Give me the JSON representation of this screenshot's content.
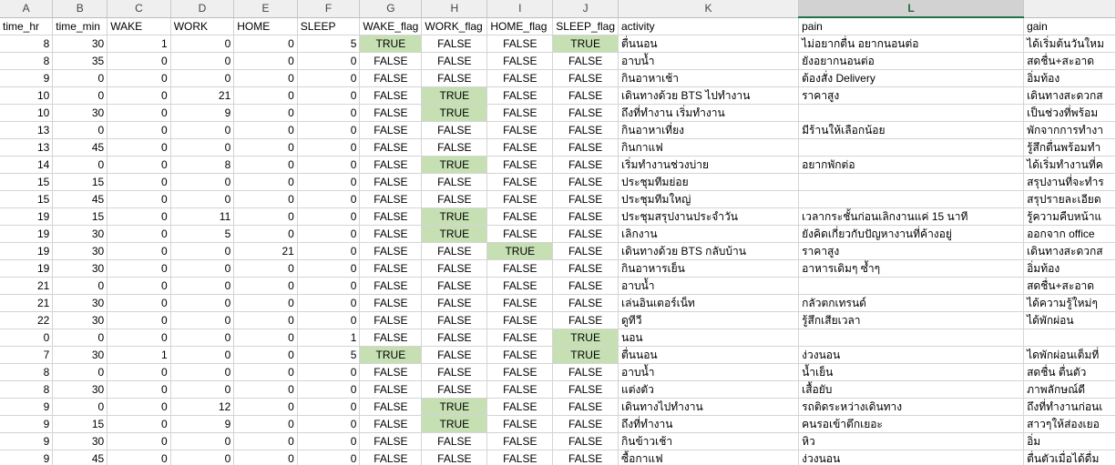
{
  "spreadsheet": {
    "column_letters": [
      "A",
      "B",
      "C",
      "D",
      "E",
      "F",
      "G",
      "H",
      "I",
      "J",
      "K",
      "L",
      ""
    ],
    "selected_column": "L",
    "highlight_color": "#c6e0b4",
    "header_row": [
      "time_hr",
      "time_min",
      "WAKE",
      "WORK",
      "HOME",
      "SLEEP",
      "WAKE_flag",
      "WORK_flag",
      "HOME_flag",
      "SLEEP_flag",
      "activity",
      "pain",
      "gain"
    ],
    "rows": [
      [
        "8",
        "30",
        "1",
        "0",
        "0",
        "5",
        "TRUE",
        "FALSE",
        "FALSE",
        "TRUE",
        "ตื่นนอน",
        "ไม่อยากตื่น อยากนอนต่อ",
        "ได้เริ่มต้นวันใหม"
      ],
      [
        "8",
        "35",
        "0",
        "0",
        "0",
        "0",
        "FALSE",
        "FALSE",
        "FALSE",
        "FALSE",
        "อาบน้ำ",
        "ยังอยากนอนต่อ",
        "สดชื่น+สะอาด"
      ],
      [
        "9",
        "0",
        "0",
        "0",
        "0",
        "0",
        "FALSE",
        "FALSE",
        "FALSE",
        "FALSE",
        "กินอาหาเช้า",
        "ต้องสั่ง Delivery",
        "อิ่มท้อง"
      ],
      [
        "10",
        "0",
        "0",
        "21",
        "0",
        "0",
        "FALSE",
        "TRUE",
        "FALSE",
        "FALSE",
        "เดินทางด้วย BTS ไปทำงาน",
        "ราคาสูง",
        "เดินทางสะดวกส"
      ],
      [
        "10",
        "30",
        "0",
        "9",
        "0",
        "0",
        "FALSE",
        "TRUE",
        "FALSE",
        "FALSE",
        "ถึงที่ทำงาน เริ่มทำงาน",
        "",
        "เป็นช่วงที่พร้อม"
      ],
      [
        "13",
        "0",
        "0",
        "0",
        "0",
        "0",
        "FALSE",
        "FALSE",
        "FALSE",
        "FALSE",
        "กินอาหาเที่ยง",
        "มีร้านให้เลือกน้อย",
        "พักจากการทำงา"
      ],
      [
        "13",
        "45",
        "0",
        "0",
        "0",
        "0",
        "FALSE",
        "FALSE",
        "FALSE",
        "FALSE",
        "กินกาแฟ",
        "",
        "รู้สึกตื่นพร้อมทำ"
      ],
      [
        "14",
        "0",
        "0",
        "8",
        "0",
        "0",
        "FALSE",
        "TRUE",
        "FALSE",
        "FALSE",
        "เริ่มทำงานช่วงบ่าย",
        "อยากพักต่อ",
        "ได้เริ่มทำงานที่ค"
      ],
      [
        "15",
        "15",
        "0",
        "0",
        "0",
        "0",
        "FALSE",
        "FALSE",
        "FALSE",
        "FALSE",
        "ประชุมทีมย่อย",
        "",
        "สรุปงานที่จะทำร"
      ],
      [
        "15",
        "45",
        "0",
        "0",
        "0",
        "0",
        "FALSE",
        "FALSE",
        "FALSE",
        "FALSE",
        "ประชุมทีมใหญ่",
        "",
        "สรุปรายละเอียด"
      ],
      [
        "19",
        "15",
        "0",
        "11",
        "0",
        "0",
        "FALSE",
        "TRUE",
        "FALSE",
        "FALSE",
        "ประชุมสรุปงานประจำวัน",
        "เวลากระชั้นก่อนเลิกงานแค่ 15 นาที",
        "รู้ความคืบหน้าแ"
      ],
      [
        "19",
        "30",
        "0",
        "5",
        "0",
        "0",
        "FALSE",
        "TRUE",
        "FALSE",
        "FALSE",
        "เลิกงาน",
        "ยังคิดเกี่ยวกับปัญหางานที่ค้างอยู่",
        "ออกจาก office"
      ],
      [
        "19",
        "30",
        "0",
        "0",
        "21",
        "0",
        "FALSE",
        "FALSE",
        "TRUE",
        "FALSE",
        "เดินทางด้วย BTS กลับบ้าน",
        "ราคาสูง",
        "เดินทางสะดวกส"
      ],
      [
        "19",
        "30",
        "0",
        "0",
        "0",
        "0",
        "FALSE",
        "FALSE",
        "FALSE",
        "FALSE",
        "กินอาหารเย็น",
        "อาหารเดิมๆ ซ้ำๆ",
        "อิ่มท้อง"
      ],
      [
        "21",
        "0",
        "0",
        "0",
        "0",
        "0",
        "FALSE",
        "FALSE",
        "FALSE",
        "FALSE",
        "อาบน้ำ",
        "",
        "สดชื่น+สะอาด"
      ],
      [
        "21",
        "30",
        "0",
        "0",
        "0",
        "0",
        "FALSE",
        "FALSE",
        "FALSE",
        "FALSE",
        "เล่นอินเตอร์เน็ท",
        "กลัวตกเทรนด์",
        "ได้ความรู้ใหม่ๆ"
      ],
      [
        "22",
        "30",
        "0",
        "0",
        "0",
        "0",
        "FALSE",
        "FALSE",
        "FALSE",
        "FALSE",
        "ดูทีวี",
        "รู้สึกเสียเวลา",
        "ได้พักผ่อน"
      ],
      [
        "0",
        "0",
        "0",
        "0",
        "0",
        "1",
        "FALSE",
        "FALSE",
        "FALSE",
        "TRUE",
        "นอน",
        "",
        ""
      ],
      [
        "7",
        "30",
        "1",
        "0",
        "0",
        "5",
        "TRUE",
        "FALSE",
        "FALSE",
        "TRUE",
        "ตื่นนอน",
        "ง่วงนอน",
        "ไดพักผ่อนเต็มที่"
      ],
      [
        "8",
        "0",
        "0",
        "0",
        "0",
        "0",
        "FALSE",
        "FALSE",
        "FALSE",
        "FALSE",
        "อาบน้ำ",
        "น้ำเย็น",
        "สดชื่น ตื่นตัว"
      ],
      [
        "8",
        "30",
        "0",
        "0",
        "0",
        "0",
        "FALSE",
        "FALSE",
        "FALSE",
        "FALSE",
        "แต่งตัว",
        "เสื้อยับ",
        "ภาพลักษณ์ดี"
      ],
      [
        "9",
        "0",
        "0",
        "12",
        "0",
        "0",
        "FALSE",
        "TRUE",
        "FALSE",
        "FALSE",
        "เดินทางไปทำงาน",
        "รถติดระหว่างเดินทาง",
        "ถึงที่ทำงานก่อนเ"
      ],
      [
        "9",
        "15",
        "0",
        "9",
        "0",
        "0",
        "FALSE",
        "TRUE",
        "FALSE",
        "FALSE",
        "ถึงที่ทำงาน",
        "คนรอเข้าตึกเยอะ",
        "สาวๆให้ส่องเยอ"
      ],
      [
        "9",
        "30",
        "0",
        "0",
        "0",
        "0",
        "FALSE",
        "FALSE",
        "FALSE",
        "FALSE",
        "กินข้าวเช้า",
        "หิว",
        "อิ่ม"
      ],
      [
        "9",
        "45",
        "0",
        "0",
        "0",
        "0",
        "FALSE",
        "FALSE",
        "FALSE",
        "FALSE",
        "ซื้อกาแฟ",
        "ง่วงนอน",
        "ตื่นตัวเมื่อได้ดื่ม"
      ]
    ]
  }
}
